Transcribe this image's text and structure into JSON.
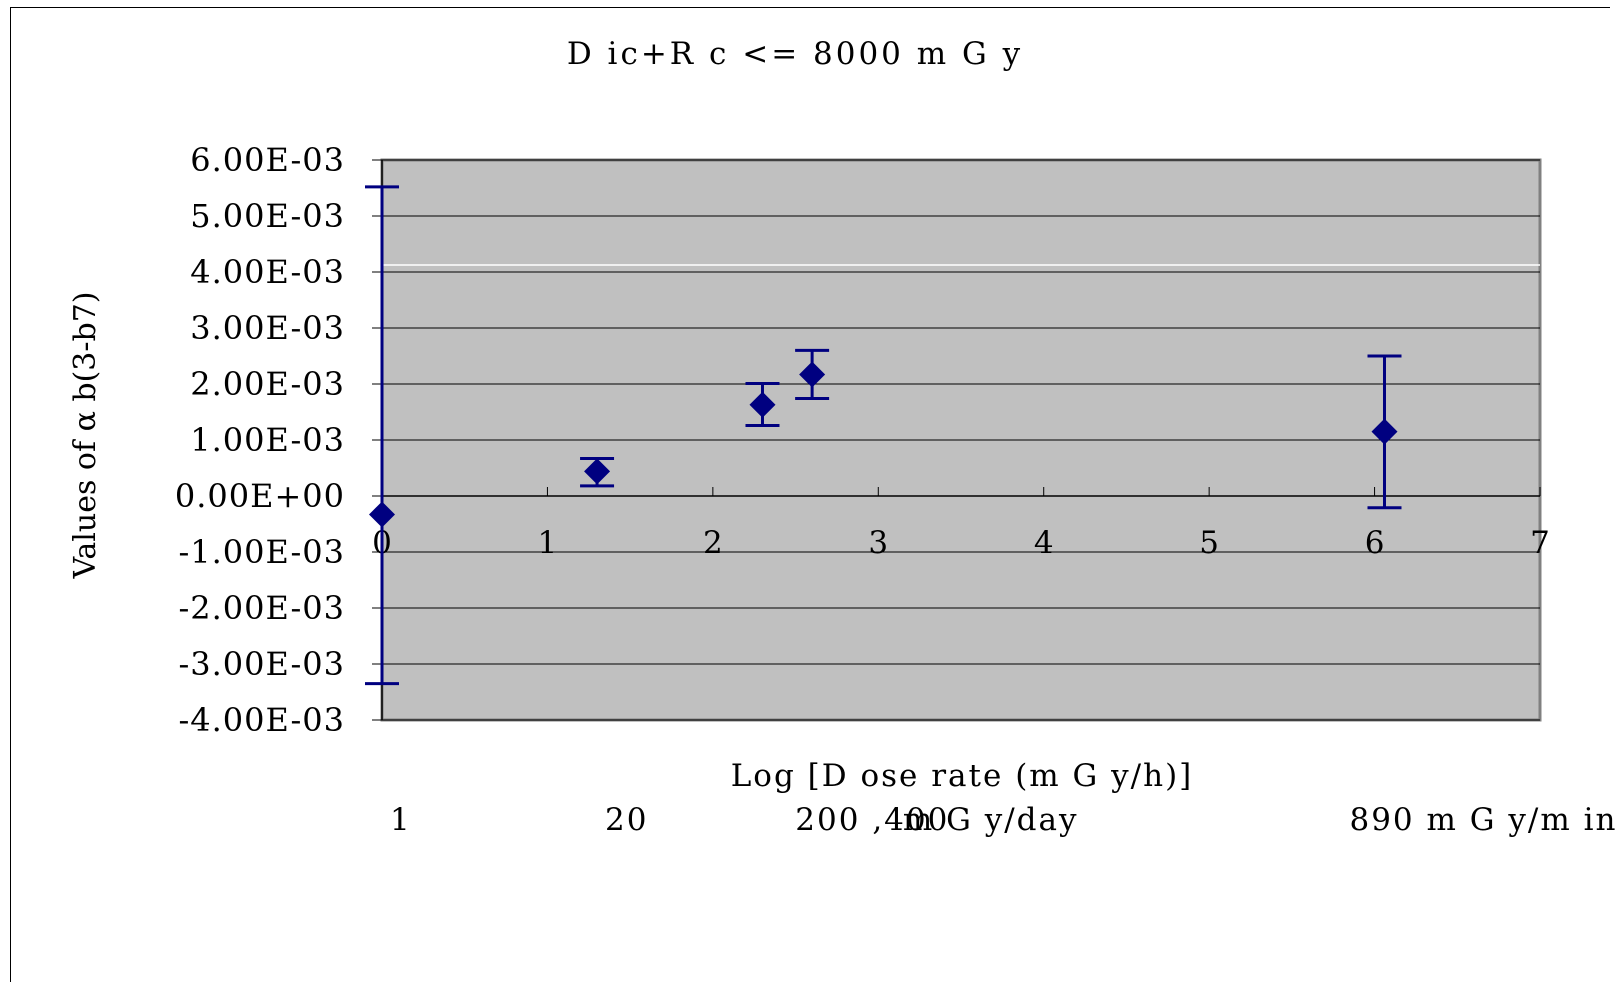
{
  "chart_data": {
    "type": "scatter",
    "title": "D ic+R c <= 8000 m G y",
    "xlabel": "Log [D ose rate (m G y/h)]",
    "ylabel": "Values of α b(3-b7)",
    "xlim": [
      0,
      7
    ],
    "ylim": [
      -0.004,
      0.006
    ],
    "x_ticks": [
      0,
      1,
      2,
      3,
      4,
      5,
      6,
      7
    ],
    "x_tick_labels": [
      "0",
      "1",
      "2",
      "3",
      "4",
      "5",
      "6",
      "7"
    ],
    "y_ticks": [
      0.006,
      0.005,
      0.004,
      0.003,
      0.002,
      0.001,
      0,
      -0.001,
      -0.002,
      -0.003,
      -0.004
    ],
    "y_tick_labels": [
      "6.00E-03",
      "5.00E-03",
      "4.00E-03",
      "3.00E-03",
      "2.00E-03",
      "1.00E-03",
      "0.00E+00",
      "-1.00E-03",
      "-2.00E-03",
      "-3.00E-03",
      "-4.00E-03"
    ],
    "grid": true,
    "plot_background": "#c0c0c0",
    "marker_color": "#000080",
    "marker": "diamond",
    "points": [
      {
        "x": 0.0,
        "y": -0.00033,
        "err_low": -0.00335,
        "err_high": 0.00552
      },
      {
        "x": 1.3,
        "y": 0.00044,
        "err_low": 0.00018,
        "err_high": 0.00067
      },
      {
        "x": 2.3,
        "y": 0.00163,
        "err_low": 0.00126,
        "err_high": 0.00201
      },
      {
        "x": 2.6,
        "y": 0.00217,
        "err_low": 0.00174,
        "err_high": 0.0026
      },
      {
        "x": 6.06,
        "y": 0.00115,
        "err_low": -0.00021,
        "err_high": 0.0025
      }
    ],
    "dose_rate_annotations": [
      {
        "x": 0.0,
        "text": "1"
      },
      {
        "x": 1.3,
        "text": "20"
      },
      {
        "x": 2.45,
        "text": "200 ,400"
      },
      {
        "x": 3.1,
        "text": "m G y/day"
      },
      {
        "x": 5.8,
        "text": "890 m G y/m in"
      }
    ]
  }
}
